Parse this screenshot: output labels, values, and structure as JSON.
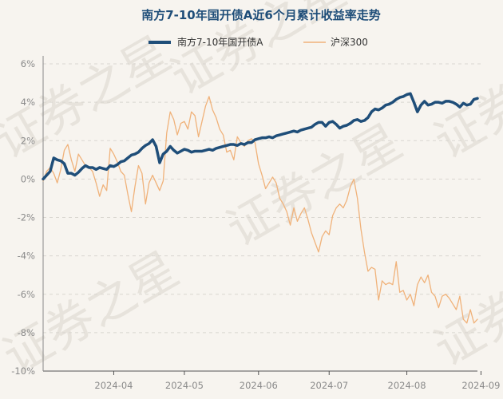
{
  "chart_data": {
    "type": "line",
    "title": "南方7-10年国开债A近6个月累计收益率走势",
    "xlabel": "",
    "ylabel": "",
    "ylim": [
      -10,
      6
    ],
    "grid": true,
    "legend_position": "top",
    "y_ticks": [
      "6%",
      "4%",
      "2%",
      "0%",
      "-2%",
      "-4%",
      "-6%",
      "-8%",
      "-10%"
    ],
    "y_tick_values": [
      6,
      4,
      2,
      0,
      -2,
      -4,
      -6,
      -8,
      -10
    ],
    "x_ticks": [
      "2024-04",
      "2024-05",
      "2024-06",
      "2024-07",
      "2024-08",
      "2024-09"
    ],
    "x_tick_index": [
      20,
      40,
      61,
      81,
      103,
      124
    ],
    "series": [
      {
        "name": "南方7-10年国开债A",
        "color": "#1f4e79",
        "values": [
          0.0,
          0.2,
          0.4,
          1.1,
          1.0,
          0.95,
          0.8,
          0.3,
          0.3,
          0.2,
          0.35,
          0.55,
          0.7,
          0.6,
          0.6,
          0.5,
          0.6,
          0.55,
          0.5,
          0.7,
          0.65,
          0.75,
          0.9,
          0.95,
          1.1,
          1.25,
          1.3,
          1.4,
          1.6,
          1.75,
          1.85,
          2.05,
          1.7,
          0.85,
          1.3,
          1.45,
          1.7,
          1.5,
          1.35,
          1.45,
          1.55,
          1.5,
          1.4,
          1.45,
          1.45,
          1.45,
          1.5,
          1.55,
          1.5,
          1.6,
          1.65,
          1.7,
          1.75,
          1.8,
          1.8,
          1.75,
          1.85,
          1.8,
          1.9,
          1.9,
          2.05,
          2.1,
          2.15,
          2.15,
          2.2,
          2.15,
          2.25,
          2.3,
          2.35,
          2.4,
          2.45,
          2.5,
          2.45,
          2.55,
          2.6,
          2.65,
          2.7,
          2.85,
          2.95,
          2.95,
          2.75,
          2.95,
          3.0,
          2.85,
          2.65,
          2.75,
          2.8,
          2.9,
          3.05,
          3.1,
          3.0,
          3.05,
          3.2,
          3.5,
          3.65,
          3.6,
          3.7,
          3.85,
          3.9,
          4.0,
          4.15,
          4.25,
          4.3,
          4.4,
          4.45,
          4.0,
          3.5,
          3.85,
          4.05,
          3.85,
          3.9,
          4.0,
          4.0,
          3.95,
          4.05,
          4.05,
          4.0,
          3.9,
          3.75,
          3.95,
          3.85,
          3.9,
          4.15,
          4.2
        ]
      },
      {
        "name": "沪深300",
        "color": "#f0b27a",
        "values": [
          -0.1,
          0.4,
          0.6,
          0.3,
          -0.2,
          0.5,
          1.5,
          1.8,
          1.0,
          0.4,
          1.3,
          1.0,
          0.7,
          0.6,
          0.4,
          -0.2,
          -0.9,
          -0.3,
          -0.6,
          1.6,
          1.3,
          0.9,
          0.4,
          0.2,
          -0.8,
          -1.7,
          -0.4,
          0.7,
          0.3,
          -1.3,
          -0.2,
          0.2,
          -0.2,
          -0.6,
          -0.1,
          2.4,
          3.5,
          3.1,
          2.3,
          2.9,
          3.0,
          2.6,
          3.5,
          3.3,
          2.2,
          3.0,
          3.8,
          4.3,
          3.6,
          3.2,
          2.6,
          2.3,
          1.4,
          1.5,
          1.0,
          2.2,
          1.9,
          1.7,
          2.0,
          2.1,
          1.9,
          0.8,
          0.2,
          -0.5,
          -0.2,
          0.1,
          -0.2,
          -1.0,
          -1.3,
          -1.7,
          -2.4,
          -1.5,
          -2.2,
          -1.8,
          -1.5,
          -2.1,
          -2.8,
          -3.3,
          -3.8,
          -3.0,
          -2.7,
          -2.9,
          -1.9,
          -1.5,
          -1.3,
          -1.5,
          -1.1,
          -0.4,
          0.0,
          -1.0,
          -2.6,
          -3.8,
          -4.8,
          -4.6,
          -4.7,
          -6.3,
          -5.3,
          -5.5,
          -5.4,
          -5.5,
          -4.3,
          -5.9,
          -5.8,
          -6.3,
          -6.0,
          -6.6,
          -5.5,
          -5.1,
          -5.4,
          -5.0,
          -5.9,
          -6.1,
          -6.7,
          -6.1,
          -6.0,
          -6.2,
          -6.5,
          -6.8,
          -6.1,
          -7.3,
          -7.5,
          -6.8,
          -7.5,
          -7.3
        ]
      }
    ]
  },
  "watermark": "证券之星"
}
